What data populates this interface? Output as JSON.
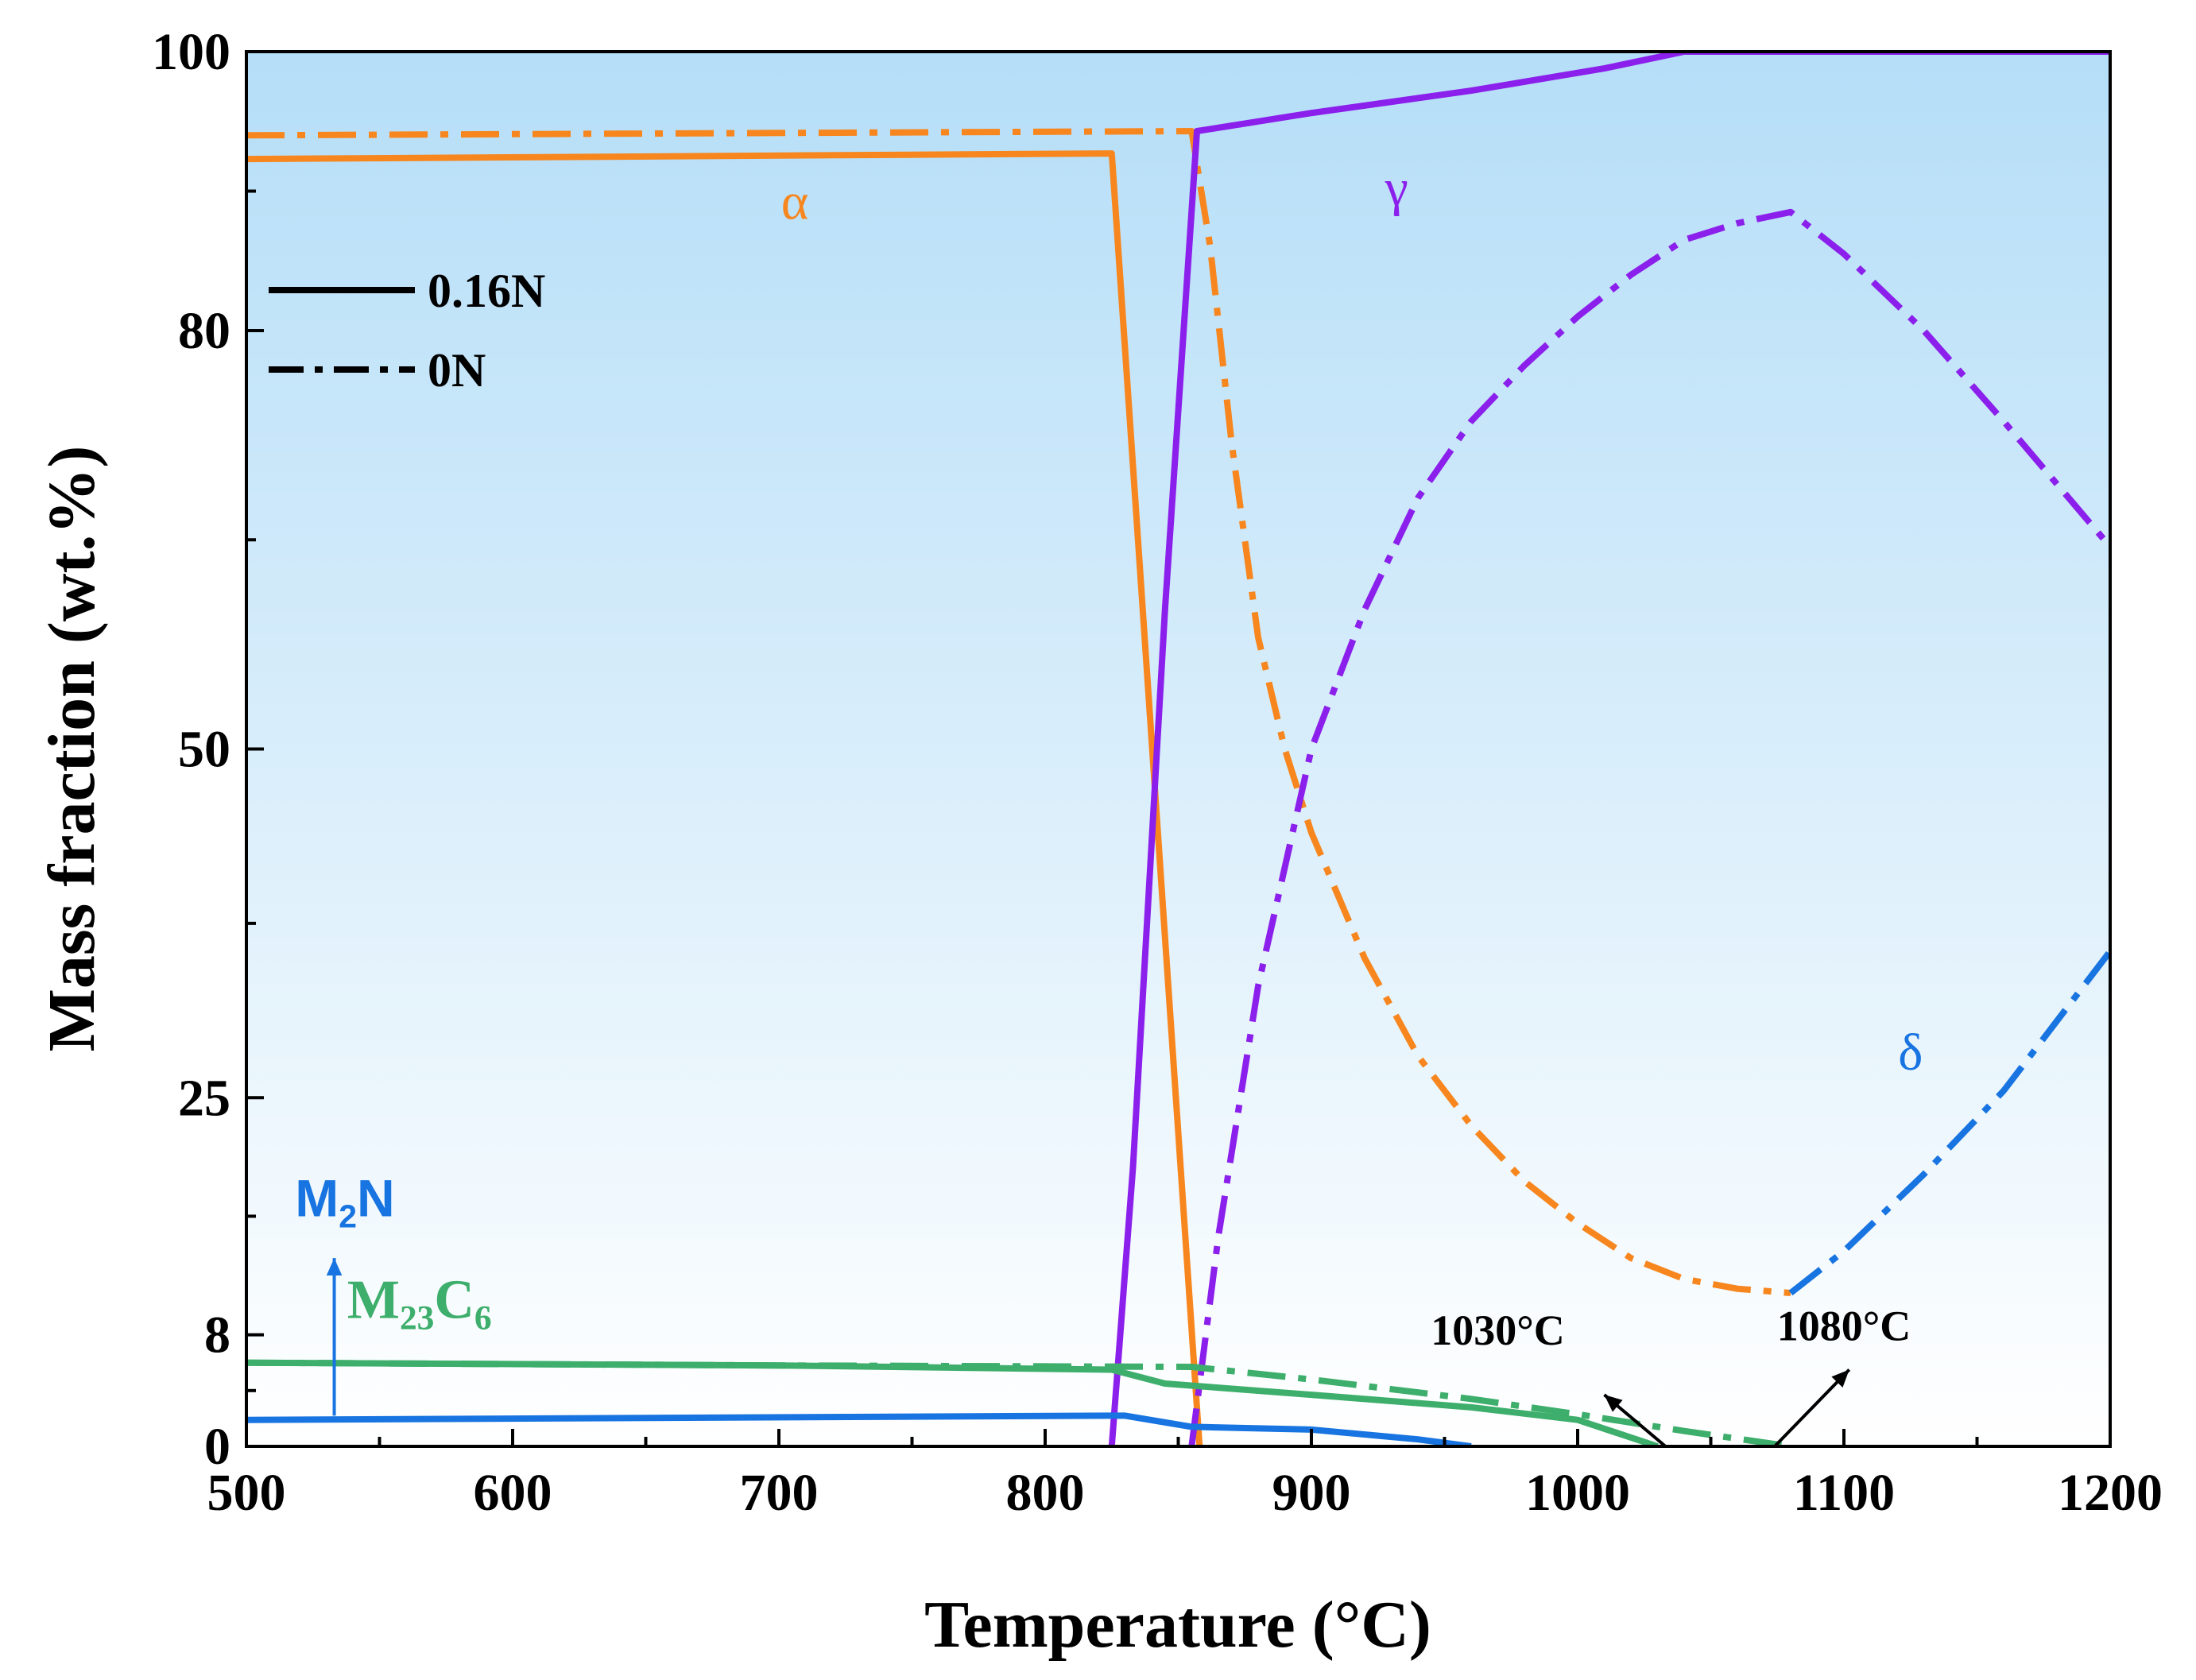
{
  "chart_data": {
    "type": "line",
    "xlabel": "Temperature (°C)",
    "ylabel": "Mass fraction (wt.%)",
    "xlim": [
      500,
      1200
    ],
    "ylim": [
      0,
      100
    ],
    "xticks": [
      500,
      600,
      700,
      800,
      900,
      1000,
      1100,
      1200
    ],
    "xtick_labels": [
      "500",
      "600",
      "700",
      "800",
      "900",
      "1000",
      "1100",
      "1200"
    ],
    "yticks": [
      0,
      8,
      25,
      50,
      80,
      100
    ],
    "ytick_labels": [
      "0",
      "8",
      "25",
      "50",
      "80",
      "100"
    ],
    "legend": {
      "position": "top-left",
      "entries": [
        {
          "label": "0.16N",
          "style": "solid"
        },
        {
          "label": "0N",
          "style": "dashdot"
        }
      ]
    },
    "series": [
      {
        "name": "α (0.16N)",
        "phase": "alpha",
        "style": "solid",
        "color": "#F7861E",
        "points": [
          [
            500,
            92.3
          ],
          [
            825,
            92.7
          ],
          [
            858,
            0
          ]
        ]
      },
      {
        "name": "α (0N)",
        "phase": "alpha",
        "style": "dashdot",
        "color": "#F7861E",
        "points": [
          [
            500,
            94.0
          ],
          [
            855,
            94.3
          ],
          [
            862,
            86
          ],
          [
            870,
            72
          ],
          [
            880,
            58
          ],
          [
            890,
            50
          ],
          [
            900,
            44
          ],
          [
            920,
            35
          ],
          [
            940,
            28
          ],
          [
            960,
            23
          ],
          [
            980,
            19
          ],
          [
            1000,
            16
          ],
          [
            1020,
            13.5
          ],
          [
            1040,
            12
          ],
          [
            1060,
            11.3
          ],
          [
            1080,
            11
          ]
        ]
      },
      {
        "name": "γ (0.16N)",
        "phase": "gamma",
        "style": "solid",
        "color": "#8B1FEB",
        "points": [
          [
            825,
            0
          ],
          [
            833,
            20
          ],
          [
            845,
            60
          ],
          [
            857,
            94.3
          ],
          [
            900,
            95.6
          ],
          [
            960,
            97.2
          ],
          [
            1010,
            98.8
          ],
          [
            1040,
            100
          ],
          [
            1200,
            100
          ]
        ]
      },
      {
        "name": "γ (0N)",
        "phase": "gamma",
        "style": "dashdot",
        "color": "#8B1FEB",
        "points": [
          [
            855,
            0
          ],
          [
            865,
            15
          ],
          [
            880,
            33
          ],
          [
            900,
            50
          ],
          [
            920,
            60
          ],
          [
            940,
            68
          ],
          [
            960,
            73.5
          ],
          [
            980,
            77.5
          ],
          [
            1000,
            81
          ],
          [
            1020,
            84
          ],
          [
            1040,
            86.5
          ],
          [
            1060,
            87.7
          ],
          [
            1080,
            88.5
          ],
          [
            1100,
            85.5
          ],
          [
            1130,
            80
          ],
          [
            1160,
            73.5
          ],
          [
            1180,
            69
          ],
          [
            1200,
            64.5
          ]
        ]
      },
      {
        "name": "δ (0N)",
        "phase": "delta",
        "style": "dashdot",
        "color": "#1874E0",
        "points": [
          [
            1080,
            11
          ],
          [
            1100,
            14
          ],
          [
            1130,
            19.5
          ],
          [
            1160,
            25.5
          ],
          [
            1180,
            30.5
          ],
          [
            1200,
            35.5
          ]
        ]
      },
      {
        "name": "M23C6 (0.16N)",
        "phase": "M23C6",
        "style": "solid",
        "color": "#3DAE6B",
        "points": [
          [
            500,
            6.0
          ],
          [
            700,
            5.8
          ],
          [
            825,
            5.5
          ],
          [
            845,
            4.5
          ],
          [
            900,
            3.7
          ],
          [
            960,
            2.8
          ],
          [
            1000,
            1.9
          ],
          [
            1030,
            0
          ]
        ]
      },
      {
        "name": "M23C6 (0N)",
        "phase": "M23C6",
        "style": "dashdot",
        "color": "#3DAE6B",
        "points": [
          [
            500,
            6.0
          ],
          [
            700,
            5.8
          ],
          [
            855,
            5.7
          ],
          [
            900,
            4.8
          ],
          [
            960,
            3.4
          ],
          [
            1000,
            2.3
          ],
          [
            1040,
            1.1
          ],
          [
            1080,
            0
          ]
        ]
      },
      {
        "name": "M2N (0.16N)",
        "phase": "M2N",
        "style": "solid",
        "color": "#1874E0",
        "points": [
          [
            500,
            1.9
          ],
          [
            825,
            2.2
          ],
          [
            830,
            2.2
          ],
          [
            855,
            1.4
          ],
          [
            900,
            1.2
          ],
          [
            940,
            0.5
          ],
          [
            960,
            0
          ]
        ]
      }
    ],
    "annotations": [
      {
        "text": "α",
        "color": "#F7861E",
        "at": [
          706,
          88
        ]
      },
      {
        "text": "γ",
        "color": "#8B1FEB",
        "at": [
          932,
          89
        ]
      },
      {
        "text": "δ",
        "color": "#1874E0",
        "at": [
          1125,
          27
        ]
      },
      {
        "text_main": "M",
        "text_sub": "2",
        "text_after": "N",
        "color": "#1874E0",
        "at": [
          537,
          16.5
        ],
        "arrow_from": [
          533,
          2.2
        ],
        "arrow_to": [
          533,
          13.5
        ]
      },
      {
        "text_main": "M",
        "text_sub1": "23",
        "text_mid": "C",
        "text_sub2": "6",
        "color": "#3DAE6B",
        "at": [
          565,
          9.2
        ]
      },
      {
        "text": "1030°C",
        "color": "#000000",
        "at": [
          970,
          7.3
        ],
        "arrow_from": [
          1033,
          0
        ],
        "arrow_to": [
          1010,
          3.7
        ]
      },
      {
        "text": "1080°C",
        "color": "#000000",
        "at": [
          1100,
          7.6
        ],
        "arrow_from": [
          1074,
          0
        ],
        "arrow_to": [
          1102,
          5.5
        ]
      }
    ]
  }
}
